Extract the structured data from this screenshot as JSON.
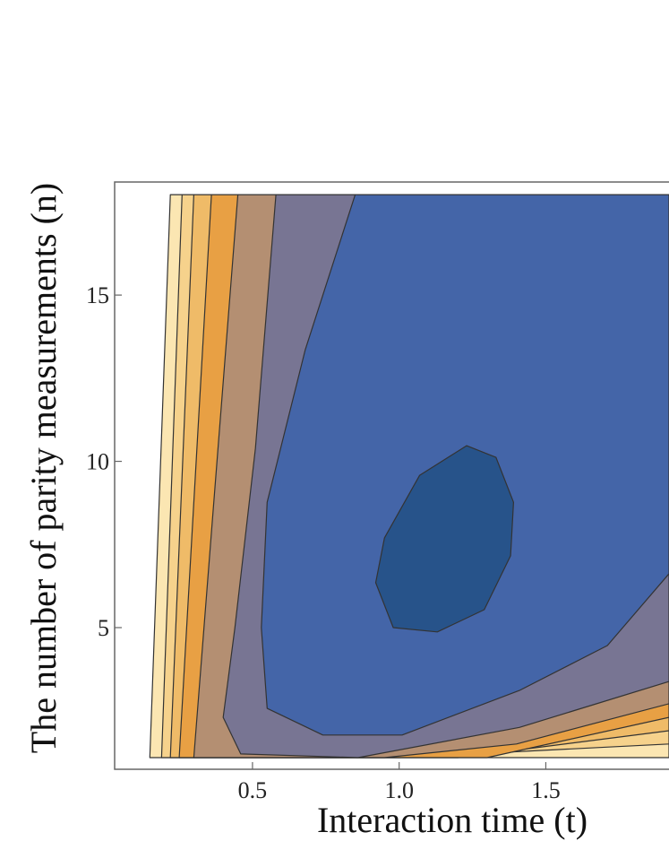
{
  "chart_data": {
    "type": "contour",
    "x_label": "Interaction time (t)",
    "y_label": "The number of parity measurements (n)",
    "xlim": [
      0.03,
      1.92
    ],
    "ylim": [
      0.74,
      18.4
    ],
    "xticks": [
      0.5,
      {
        "value": 1.0,
        "label": "1.0"
      },
      1.5
    ],
    "yticks": [
      5,
      10,
      15
    ],
    "contours": [
      {
        "color": "#fbe6b2",
        "x": [
          0.22,
          1.92,
          1.92,
          0.15
        ],
        "y": [
          18.02,
          18.02,
          1.09,
          1.09
        ]
      },
      {
        "color": "#f6d28c",
        "x": [
          0.26,
          1.92,
          1.92,
          1.0,
          0.19
        ],
        "y": [
          18.02,
          18.02,
          1.5,
          1.09,
          1.09
        ]
      },
      {
        "color": "#efbb68",
        "x": [
          0.3,
          1.92,
          1.92,
          1.2,
          0.22
        ],
        "y": [
          18.02,
          18.02,
          1.9,
          1.09,
          1.09
        ]
      },
      {
        "color": "#e8a044",
        "x": [
          0.36,
          1.92,
          1.92,
          1.3,
          0.25
        ],
        "y": [
          18.02,
          18.02,
          2.3,
          1.09,
          1.09
        ]
      },
      {
        "color": "#b48f72",
        "x": [
          0.45,
          1.92,
          1.92,
          1.4,
          0.95,
          0.3
        ],
        "y": [
          18.02,
          18.02,
          2.71,
          1.5,
          1.09,
          1.09
        ]
      },
      {
        "color": "#787593",
        "x": [
          0.58,
          1.92,
          1.92,
          1.41,
          0.86,
          0.46,
          0.4,
          0.44,
          0.51
        ],
        "y": [
          18.02,
          18.02,
          3.38,
          2.0,
          1.09,
          1.2,
          2.3,
          5.0,
          10.39
        ]
      },
      {
        "color": "#4465a8",
        "x": [
          0.85,
          1.92,
          1.92,
          1.71,
          1.41,
          1.01,
          0.74,
          0.55,
          0.53,
          0.55,
          0.68
        ],
        "y": [
          18.02,
          18.02,
          6.62,
          4.46,
          3.11,
          1.77,
          1.77,
          2.57,
          5.0,
          8.77,
          13.36
        ]
      },
      {
        "color": "#27538a",
        "x": [
          0.92,
          0.95,
          1.07,
          1.23,
          1.33,
          1.39,
          1.38,
          1.29,
          1.13,
          0.98
        ],
        "y": [
          6.35,
          7.7,
          9.58,
          10.47,
          10.12,
          8.77,
          7.16,
          5.54,
          4.87,
          5.0
        ]
      }
    ]
  }
}
